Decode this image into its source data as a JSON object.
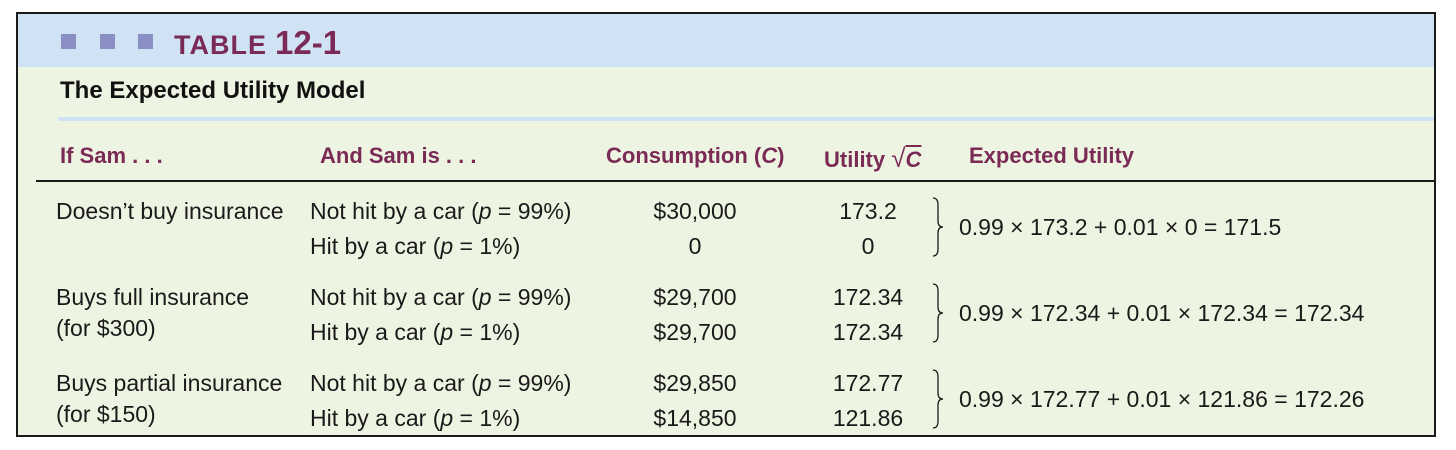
{
  "table": {
    "label_word": "TABLE",
    "label_number": "12-1",
    "subtitle": "The Expected Utility Model"
  },
  "headers": {
    "if_sam": "If Sam . . .",
    "and_sam_is": "And Sam is . . .",
    "consumption_prefix": "Consumption (",
    "consumption_var": "C",
    "consumption_suffix": ")",
    "utility_prefix": "Utility ",
    "utility_sqrt": "√",
    "utility_var": "C",
    "expected_utility": "Expected Utility"
  },
  "rows": [
    {
      "choice_line1": "Doesn’t buy insurance",
      "choice_line2": "",
      "outcomes": [
        {
          "pre": "Not hit by a car (",
          "var": "p",
          "post": " = 99%)",
          "consumption": "$30,000",
          "utility": "173.2"
        },
        {
          "pre": "Hit by a car (",
          "var": "p",
          "post": " = 1%)",
          "consumption": "0",
          "utility": "0"
        }
      ],
      "expected_utility": "0.99 × 173.2 + 0.01 × 0 = 171.5"
    },
    {
      "choice_line1": "Buys full insurance",
      "choice_line2": "(for $300)",
      "outcomes": [
        {
          "pre": "Not hit by a car (",
          "var": "p",
          "post": " = 99%)",
          "consumption": "$29,700",
          "utility": "172.34"
        },
        {
          "pre": "Hit by a car (",
          "var": "p",
          "post": " = 1%)",
          "consumption": "$29,700",
          "utility": "172.34"
        }
      ],
      "expected_utility": "0.99 × 172.34 + 0.01 × 172.34 = 172.34"
    },
    {
      "choice_line1": "Buys partial insurance",
      "choice_line2": "(for $150)",
      "outcomes": [
        {
          "pre": "Not hit by a car (",
          "var": "p",
          "post": " = 99%)",
          "consumption": "$29,850",
          "utility": "172.77"
        },
        {
          "pre": "Hit by a car (",
          "var": "p",
          "post": " = 1%)",
          "consumption": "$14,850",
          "utility": "121.86"
        }
      ],
      "expected_utility": "0.99 × 172.77 + 0.01 × 121.86 = 172.26"
    }
  ],
  "colors": {
    "title_band": "#cfe3f5",
    "body_background": "#eef4e2",
    "header_text": "#7a2a55",
    "decor_squares": "#8a90c4"
  }
}
